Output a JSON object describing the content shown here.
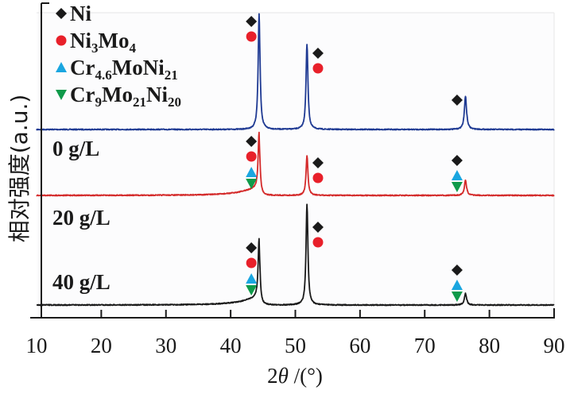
{
  "chart_data": {
    "type": "line",
    "title": "",
    "xlabel": "2θ /(°)",
    "xlabel_parts": {
      "num": "2",
      "theta": "θ",
      "rest": " /(°)"
    },
    "ylabel": "相对强度(a.u.)",
    "xlim": [
      10,
      90
    ],
    "xticks": [
      10,
      20,
      30,
      40,
      50,
      60,
      70,
      80,
      90
    ],
    "xtick_labels": [
      "10",
      "20",
      "30",
      "40",
      "50",
      "60",
      "70",
      "80",
      "90"
    ],
    "grid": false,
    "legend": {
      "placement": "top-left",
      "entries": [
        {
          "phase": "Ni",
          "marker": "diamond",
          "color": "#1a1a1a",
          "parts": [
            {
              "t": "Ni",
              "sub": false
            }
          ]
        },
        {
          "phase": "Ni3Mo4",
          "marker": "circle",
          "color": "#e8202a",
          "parts": [
            {
              "t": "Ni",
              "sub": false
            },
            {
              "t": "3",
              "sub": true
            },
            {
              "t": "Mo",
              "sub": false
            },
            {
              "t": "4",
              "sub": true
            }
          ]
        },
        {
          "phase": "Cr4.6MoNi21",
          "marker": "triangle-up",
          "color": "#1aa6e0",
          "parts": [
            {
              "t": "Cr",
              "sub": false
            },
            {
              "t": "4.6",
              "sub": true
            },
            {
              "t": "MoNi",
              "sub": false
            },
            {
              "t": "21",
              "sub": true
            }
          ]
        },
        {
          "phase": "Cr9Mo21Ni20",
          "marker": "triangle-down",
          "color": "#0f9a4a",
          "parts": [
            {
              "t": "Cr",
              "sub": false
            },
            {
              "t": "9",
              "sub": true
            },
            {
              "t": "Mo",
              "sub": false
            },
            {
              "t": "21",
              "sub": true
            },
            {
              "t": "Ni",
              "sub": false
            },
            {
              "t": "20",
              "sub": true
            }
          ]
        }
      ]
    },
    "series": [
      {
        "name": "0 g/L",
        "color": "#1f3a93",
        "offset": 2.0,
        "peaks": [
          {
            "x": 44.4,
            "intensity": 1.0,
            "width": 0.35
          },
          {
            "x": 51.8,
            "intensity": 0.74,
            "width": 0.35
          },
          {
            "x": 76.3,
            "intensity": 0.29,
            "width": 0.4
          }
        ],
        "annotations": [
          {
            "x": 43.2,
            "markers": [
              "diamond",
              "circle"
            ]
          },
          {
            "x": 53.5,
            "markers": [
              "diamond",
              "circle"
            ]
          },
          {
            "x": 75.0,
            "markers": [
              "diamond"
            ]
          }
        ]
      },
      {
        "name": "20 g/L",
        "color": "#d42a2a",
        "offset": 1.0,
        "peaks": [
          {
            "x": 44.4,
            "intensity": 0.49,
            "width": 0.35
          },
          {
            "x": 51.8,
            "intensity": 0.34,
            "width": 0.35
          },
          {
            "x": 76.3,
            "intensity": 0.13,
            "width": 0.4
          }
        ],
        "shoulder": {
          "x": 44.4,
          "intensity": 0.06,
          "width": 3.0
        },
        "annotations": [
          {
            "x": 43.2,
            "markers": [
              "diamond",
              "circle",
              "triangle-up",
              "triangle-down"
            ]
          },
          {
            "x": 53.5,
            "markers": [
              "diamond",
              "circle"
            ]
          },
          {
            "x": 75.0,
            "markers": [
              "diamond",
              "triangle-up",
              "triangle-down"
            ]
          }
        ]
      },
      {
        "name": "40 g/L",
        "color": "#1a1a1a",
        "offset": 0.0,
        "peaks": [
          {
            "x": 44.4,
            "intensity": 0.52,
            "width": 0.35
          },
          {
            "x": 51.8,
            "intensity": 0.87,
            "width": 0.35
          },
          {
            "x": 76.3,
            "intensity": 0.1,
            "width": 0.4
          }
        ],
        "shoulder": {
          "x": 44.4,
          "intensity": 0.06,
          "width": 3.0
        },
        "annotations": [
          {
            "x": 43.2,
            "markers": [
              "diamond",
              "circle",
              "triangle-up",
              "triangle-down"
            ]
          },
          {
            "x": 53.5,
            "markers": [
              "diamond",
              "circle"
            ]
          },
          {
            "x": 75.0,
            "markers": [
              "diamond",
              "triangle-up",
              "triangle-down"
            ]
          }
        ]
      }
    ]
  }
}
